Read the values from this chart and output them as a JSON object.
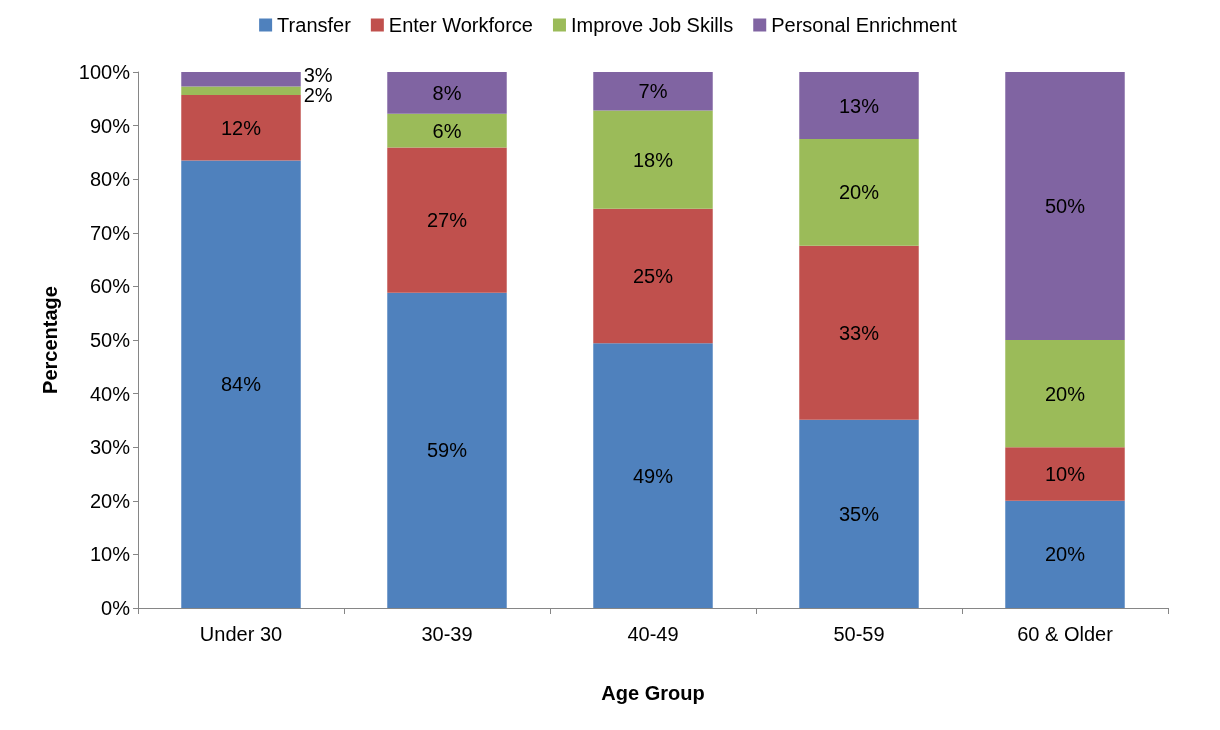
{
  "chart_data": {
    "type": "bar",
    "stacked": true,
    "xlabel": "Age Group",
    "ylabel": "Percentage",
    "categories": [
      "Under 30",
      "30-39",
      "40-49",
      "50-59",
      "60 & Older"
    ],
    "series": [
      {
        "name": "Transfer",
        "color": "#4f81bd",
        "values": [
          83.5,
          58.8,
          49.4,
          35.1,
          20
        ],
        "value_labels": [
          "84%",
          "59%",
          "49%",
          "35%",
          "20%"
        ]
      },
      {
        "name": "Enter Workforce",
        "color": "#c0504d",
        "values": [
          12.2,
          27.1,
          25.1,
          32.5,
          10
        ],
        "value_labels": [
          "12%",
          "27%",
          "25%",
          "33%",
          "10%"
        ]
      },
      {
        "name": "Improve Job Skills",
        "color": "#9bbb59",
        "values": [
          1.6,
          6.3,
          18.3,
          19.9,
          20
        ],
        "value_labels": [
          "2%",
          "6%",
          "18%",
          "20%",
          "20%"
        ]
      },
      {
        "name": "Personal Enrichment",
        "color": "#8064a2",
        "values": [
          2.7,
          7.8,
          7.2,
          12.5,
          50
        ],
        "value_labels": [
          "3%",
          "8%",
          "7%",
          "13%",
          "50%"
        ]
      }
    ],
    "ylim": [
      0,
      100
    ],
    "yticks": [
      {
        "value": 0,
        "label": "0%"
      },
      {
        "value": 10,
        "label": "10%"
      },
      {
        "value": 20,
        "label": "20%"
      },
      {
        "value": 30,
        "label": "30%"
      },
      {
        "value": 40,
        "label": "40%"
      },
      {
        "value": 50,
        "label": "50%"
      },
      {
        "value": 60,
        "label": "60%"
      },
      {
        "value": 70,
        "label": "70%"
      },
      {
        "value": 80,
        "label": "80%"
      },
      {
        "value": 90,
        "label": "90%"
      },
      {
        "value": 100,
        "label": "100%"
      }
    ],
    "grid": false,
    "legend": "top"
  }
}
